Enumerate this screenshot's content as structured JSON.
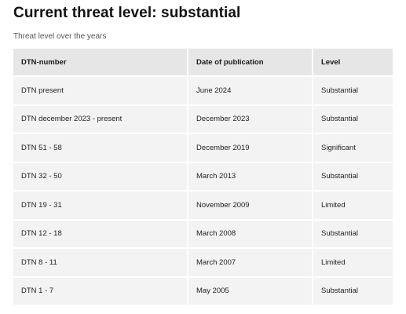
{
  "page": {
    "title": "Current threat level: substantial",
    "caption": "Threat level over the years"
  },
  "table": {
    "headers": [
      "DTN-number",
      "Date of publication",
      "Level"
    ],
    "rows": [
      [
        "DTN present",
        "June 2024",
        "Substantial"
      ],
      [
        "DTN december 2023 - present",
        "December 2023",
        "Substantial"
      ],
      [
        "DTN 51 - 58",
        "December 2019",
        "Significant"
      ],
      [
        "DTN 32 - 50",
        "March 2013",
        "Substantial"
      ],
      [
        "DTN 19 - 31",
        "November 2009",
        "Limited"
      ],
      [
        "DTN 12 - 18",
        "March 2008",
        "Substantial"
      ],
      [
        "DTN 8 - 11",
        "March 2007",
        "Limited"
      ],
      [
        "DTN 1 - 7",
        "May 2005",
        "Substantial"
      ]
    ]
  }
}
